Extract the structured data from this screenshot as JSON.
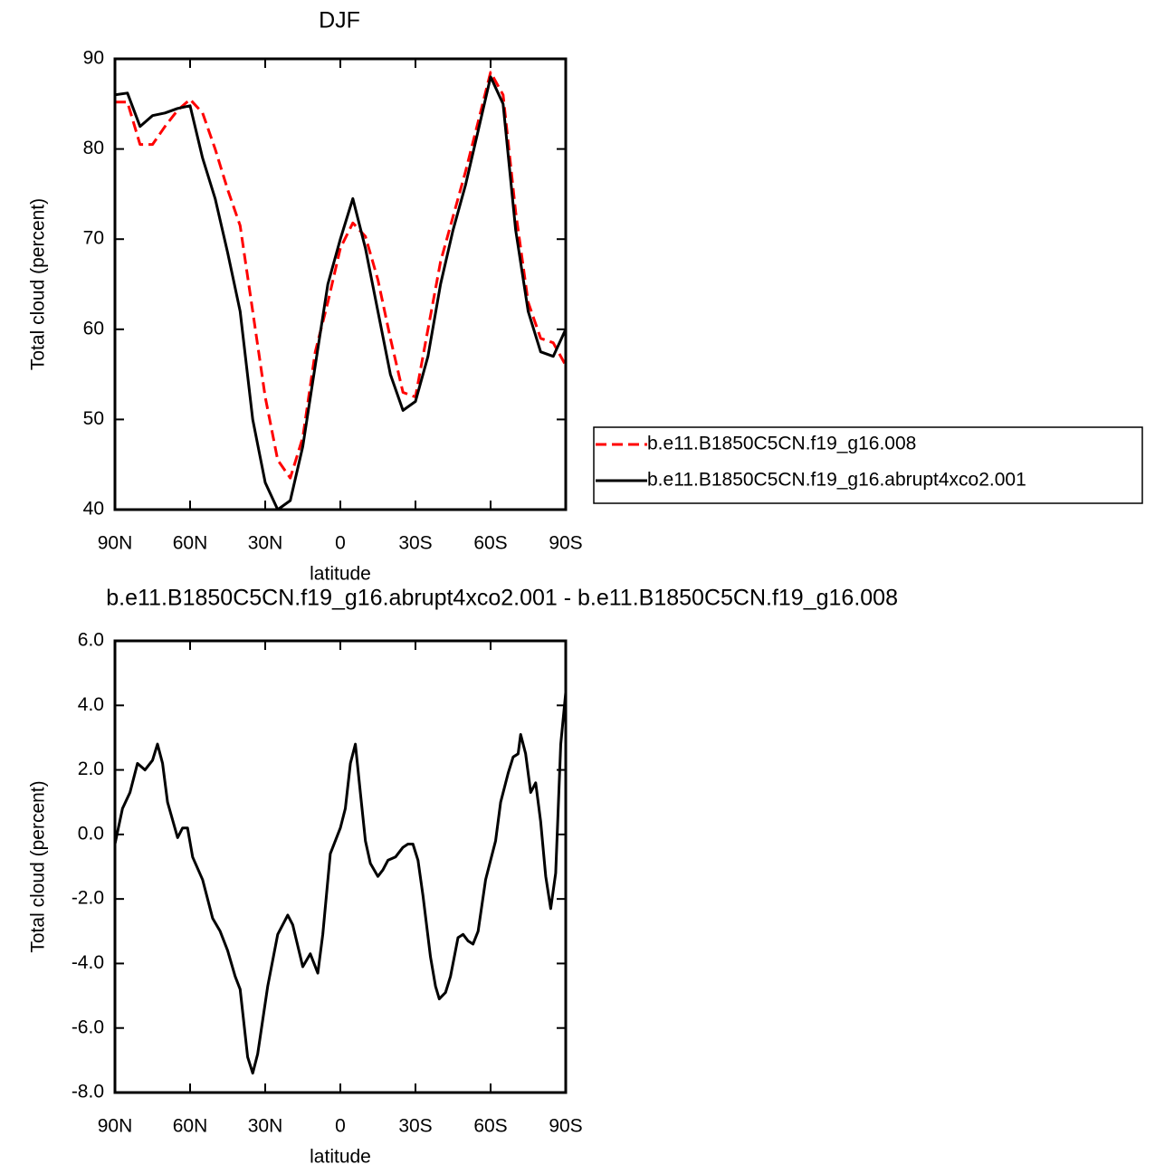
{
  "chart_data": [
    {
      "type": "line",
      "title": "DJF",
      "xlabel": "latitude",
      "ylabel": "Total cloud (percent)",
      "x": [
        90,
        85,
        80,
        75,
        70,
        65,
        60,
        55,
        50,
        45,
        40,
        35,
        30,
        25,
        20,
        15,
        10,
        5,
        0,
        -5,
        -10,
        -15,
        -20,
        -25,
        -30,
        -35,
        -40,
        -45,
        -50,
        -55,
        -60,
        -65,
        -70,
        -75,
        -80,
        -85,
        -90
      ],
      "series": [
        {
          "name": "b.e11.B1850C5CN.f19_g16.008",
          "color": "#ff0000",
          "dash": true,
          "values": [
            85.2,
            85.2,
            80.5,
            80.5,
            82.5,
            84.3,
            85.5,
            84,
            80,
            75.5,
            71.5,
            62,
            52.5,
            45.5,
            43.5,
            48,
            57.5,
            63,
            69,
            71.8,
            70.3,
            65.5,
            59,
            53,
            52.5,
            60,
            67.5,
            72.5,
            77.5,
            83,
            88.5,
            86,
            73,
            63,
            59,
            58.5,
            56
          ]
        },
        {
          "name": "b.e11.B1850C5CN.f19_g16.abrupt4xco2.001",
          "color": "#000000",
          "dash": false,
          "values": [
            86,
            86.2,
            82.5,
            83.7,
            84,
            84.5,
            84.8,
            79,
            74.5,
            68.5,
            62,
            50,
            43,
            40,
            41,
            47,
            56,
            65,
            70,
            74.5,
            69,
            62,
            55,
            51,
            52,
            57,
            65,
            71,
            76,
            82,
            88,
            85,
            71,
            62,
            57.5,
            57,
            60
          ]
        }
      ],
      "xlim": [
        90,
        -90
      ],
      "xticks": [
        {
          "value": 90,
          "label": "90N"
        },
        {
          "value": 60,
          "label": "60N"
        },
        {
          "value": 30,
          "label": "30N"
        },
        0,
        {
          "value": -30,
          "label": "30S"
        },
        {
          "value": -60,
          "label": "60S"
        },
        {
          "value": -90,
          "label": "90S"
        }
      ],
      "ylim": [
        40,
        90
      ],
      "yticks": [
        40,
        50,
        60,
        70,
        80,
        90
      ],
      "legend": "right"
    },
    {
      "type": "line",
      "title": "b.e11.B1850C5CN.f19_g16.abrupt4xco2.001 - b.e11.B1850C5CN.f19_g16.008",
      "xlabel": "latitude",
      "ylabel": "Total cloud (percent)",
      "x": [
        90,
        87,
        84,
        81,
        78,
        75,
        73,
        71,
        69,
        65,
        63,
        61,
        59,
        55,
        51,
        48,
        45,
        42,
        40,
        37,
        35,
        33,
        29,
        25,
        21,
        19,
        15,
        12,
        9,
        7,
        4,
        0,
        -2,
        -4,
        -6,
        -8,
        -10,
        -12,
        -15,
        -17,
        -19,
        -22,
        -25,
        -27,
        -29,
        -31,
        -33,
        -36,
        -38,
        -39.5,
        -42,
        -44,
        -47,
        -49,
        -51,
        -53,
        -55,
        -58,
        -62,
        -64,
        -67,
        -69,
        -71,
        -72,
        -74,
        -76,
        -78,
        -80,
        -82,
        -84,
        -86,
        -88,
        -90
      ],
      "series": [
        {
          "color": "#000000",
          "dash": false,
          "values": [
            -0.3,
            0.8,
            1.3,
            2.2,
            2.0,
            2.3,
            2.8,
            2.2,
            1.0,
            -0.1,
            0.2,
            0.2,
            -0.7,
            -1.4,
            -2.6,
            -3.0,
            -3.6,
            -4.4,
            -4.8,
            -6.9,
            -7.4,
            -6.8,
            -4.7,
            -3.1,
            -2.5,
            -2.8,
            -4.1,
            -3.7,
            -4.3,
            -3.1,
            -0.6,
            0.2,
            0.8,
            2.2,
            2.8,
            1.3,
            -0.2,
            -0.9,
            -1.3,
            -1.1,
            -0.8,
            -0.7,
            -0.4,
            -0.3,
            -0.3,
            -0.8,
            -1.9,
            -3.8,
            -4.7,
            -5.1,
            -4.9,
            -4.4,
            -3.2,
            -3.1,
            -3.3,
            -3.4,
            -3.0,
            -1.4,
            -0.2,
            1.0,
            1.9,
            2.4,
            2.5,
            3.1,
            2.5,
            1.3,
            1.6,
            0.4,
            -1.3,
            -2.3,
            -1.2,
            2.8,
            4.4
          ]
        }
      ],
      "xlim": [
        90,
        -90
      ],
      "xticks": [
        {
          "value": 90,
          "label": "90N"
        },
        {
          "value": 60,
          "label": "60N"
        },
        {
          "value": 30,
          "label": "30N"
        },
        0,
        {
          "value": -30,
          "label": "30S"
        },
        {
          "value": -60,
          "label": "60S"
        },
        {
          "value": -90,
          "label": "90S"
        }
      ],
      "ylim": [
        -8,
        6
      ],
      "yticks": [
        {
          "value": -8,
          "label": "-8.0"
        },
        {
          "value": -6,
          "label": "-6.0"
        },
        {
          "value": -4,
          "label": "-4.0"
        },
        {
          "value": -2,
          "label": "-2.0"
        },
        {
          "value": 0,
          "label": "0.0"
        },
        {
          "value": 2,
          "label": "2.0"
        },
        {
          "value": 4,
          "label": "4.0"
        },
        {
          "value": 6,
          "label": "6.0"
        }
      ]
    }
  ]
}
